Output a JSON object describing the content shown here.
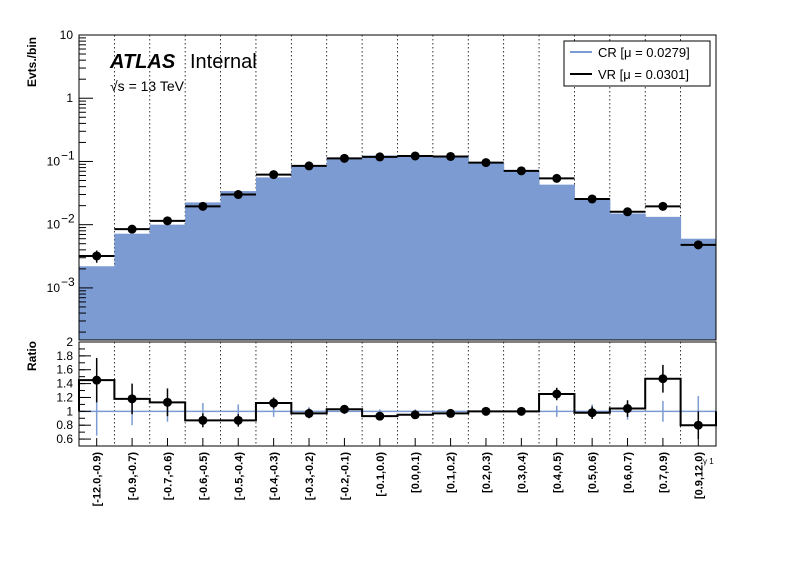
{
  "chart_data": {
    "type": "bar",
    "categories": [
      "[-12.0,-0.9)",
      "[-0.9,-0.7)",
      "[-0.7,-0.6)",
      "[-0.6,-0.5)",
      "[-0.5,-0.4)",
      "[-0.4,-0.3)",
      "[-0.3,-0.2)",
      "[-0.2,-0.1)",
      "[-0.1,0.0)",
      "[0.0,0.1)",
      "[0.1,0.2)",
      "[0.2,0.3)",
      "[0.3,0.4)",
      "[0.4,0.5)",
      "[0.5,0.6)",
      "[0.6,0.7)",
      "[0.7,0.9)",
      "[0.9,12.0)"
    ],
    "series": [
      {
        "name": "CR [μ = 0.0279]",
        "color": "#7b9bd2",
        "values": [
          0.0022,
          0.0072,
          0.01,
          0.0225,
          0.034,
          0.056,
          0.086,
          0.11,
          0.124,
          0.125,
          0.123,
          0.095,
          0.071,
          0.043,
          0.026,
          0.015,
          0.0133,
          0.006
        ]
      },
      {
        "name": "VR [μ = 0.0301]",
        "color": "#000000",
        "values": [
          0.0032,
          0.0085,
          0.0115,
          0.0195,
          0.03,
          0.062,
          0.085,
          0.112,
          0.118,
          0.122,
          0.12,
          0.096,
          0.071,
          0.054,
          0.0255,
          0.016,
          0.0195,
          0.0048
        ],
        "errors": [
          0.0007,
          0.0008,
          0.0009,
          0.0012,
          0.0015,
          0.0025,
          0.003,
          0.0035,
          0.0035,
          0.0035,
          0.0035,
          0.003,
          0.0025,
          0.002,
          0.0013,
          0.001,
          0.0012,
          0.0007
        ]
      }
    ],
    "ratio": {
      "ylabel": "Ratio",
      "ticks": [
        "0.6",
        "0.8",
        "1",
        "1.2",
        "1.4",
        "1.6",
        "1.8",
        "2"
      ],
      "ylim": [
        0.5,
        2.0
      ],
      "values": [
        1.45,
        1.18,
        1.13,
        0.87,
        0.87,
        1.12,
        0.97,
        1.03,
        0.93,
        0.95,
        0.97,
        1.0,
        1.0,
        1.25,
        0.98,
        1.04,
        1.47,
        0.8
      ],
      "errors": [
        0.32,
        0.22,
        0.2,
        0.1,
        0.09,
        0.08,
        0.07,
        0.05,
        0.05,
        0.05,
        0.05,
        0.05,
        0.06,
        0.09,
        0.09,
        0.12,
        0.2,
        0.2
      ],
      "cr_errors": [
        0.35,
        0.2,
        0.15,
        0.12,
        0.1,
        0.08,
        0.06,
        0.04,
        0.03,
        0.03,
        0.03,
        0.04,
        0.05,
        0.08,
        0.1,
        0.12,
        0.15,
        0.22
      ]
    },
    "ylabel": "Evts./bin",
    "yscale": "log",
    "ylim": [
      0.00015,
      10
    ],
    "yticks": [
      {
        "v": 0.001,
        "base": "10",
        "exp": "−3"
      },
      {
        "v": 0.01,
        "base": "10",
        "exp": "−2"
      },
      {
        "v": 0.1,
        "base": "10",
        "exp": "−1"
      },
      {
        "v": 1,
        "base": "1",
        "exp": ""
      },
      {
        "v": 10,
        "base": "10",
        "exp": ""
      }
    ],
    "xlabel_fragment": "γ 1",
    "grid": "vertical-dotted",
    "legend_position": "top-right",
    "annotations": {
      "atlas": "ATLAS",
      "internal": "Internal",
      "energy": "√s = 13 TeV"
    }
  }
}
